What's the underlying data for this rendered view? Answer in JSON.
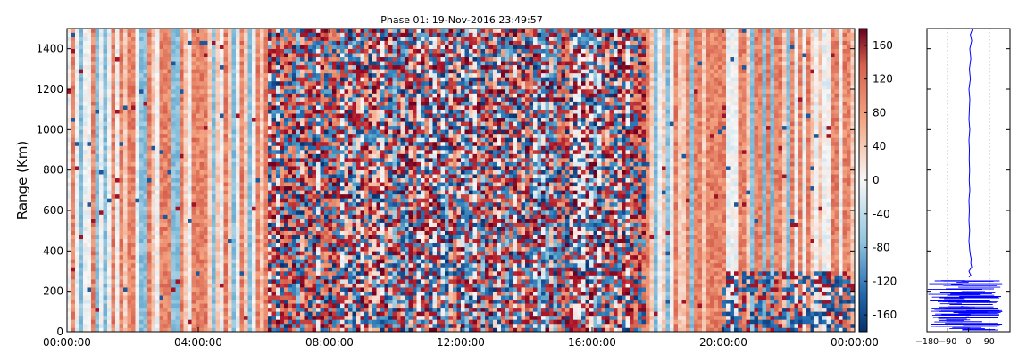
{
  "chart_data": [
    {
      "type": "heatmap",
      "title": "Phase 01: 19-Nov-2016 23:49:57",
      "ylabel": "Range (Km)",
      "xlabel": "",
      "x_range": [
        "00:00:00",
        "24:00:00"
      ],
      "ylim": [
        0,
        1500
      ],
      "x_ticks": [
        "00:00:00",
        "04:00:00",
        "08:00:00",
        "12:00:00",
        "16:00:00",
        "20:00:00",
        "00:00:00"
      ],
      "y_ticks": [
        0,
        200,
        400,
        600,
        800,
        1000,
        1200,
        1400
      ],
      "colorscale": "red-blue diverging",
      "colorbar_range": [
        -180,
        180
      ],
      "colorbar_ticks": [
        -160,
        -120,
        -80,
        -40,
        0,
        40,
        80,
        120,
        160
      ],
      "colors": {
        "low": "#08306b",
        "mid": "#f7f7f7",
        "high": "#67001f"
      },
      "column_pattern": "alternating positive (orange) and near-zero (light blue/white) phase columns; strongly mixed red/blue speckle between about 06:00 and 17:30; noisy below about 300 km after 20:00",
      "grid": false,
      "legend": "none"
    },
    {
      "type": "line",
      "title": "",
      "xlabel": "",
      "ylabel": "",
      "xlim": [
        -180,
        180
      ],
      "ylim": [
        0,
        1500
      ],
      "x_ticks": [
        -180,
        -90,
        0,
        90
      ],
      "reference_lines_x": [
        -90,
        90
      ],
      "line_color": "#0000ff",
      "series": [
        {
          "x": [
            18,
            8,
            14,
            6,
            10,
            4,
            8,
            2,
            6,
            4,
            2,
            6,
            2,
            4,
            3,
            5,
            3,
            6,
            2,
            4,
            2,
            5,
            2,
            6,
            8,
            12,
            10,
            14,
            8,
            2,
            6,
            10,
            2
          ],
          "y": [
            1500,
            1470,
            1440,
            1400,
            1350,
            1300,
            1250,
            1200,
            1150,
            1100,
            1050,
            1000,
            950,
            900,
            850,
            800,
            750,
            700,
            650,
            600,
            550,
            500,
            450,
            400,
            380,
            360,
            340,
            320,
            310,
            300,
            290,
            280,
            270
          ]
        }
      ],
      "lower_band_note": "large-amplitude scatter spanning roughly -180 to 150 between 0 and 260 km"
    }
  ]
}
